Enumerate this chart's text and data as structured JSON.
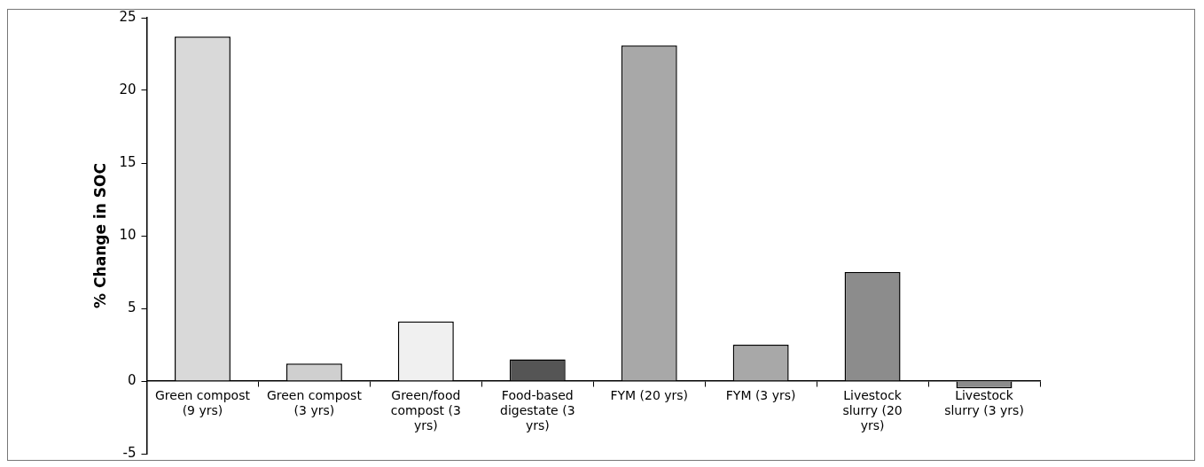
{
  "chart_data": {
    "type": "bar",
    "ylabel": "% Change in SOC",
    "categories": [
      "Green compost (9 yrs)",
      "Green compost (3 yrs)",
      "Green/food compost (3 yrs)",
      "Food-based digestate (3 yrs)",
      "FYM (20 yrs)",
      "FYM (3 yrs)",
      "Livestock slurry (20 yrs)",
      "Livestock slurry (3 yrs)"
    ],
    "values": [
      23.7,
      1.2,
      4.1,
      1.5,
      23.1,
      2.5,
      7.5,
      -0.5
    ],
    "colors": [
      "#d9d9d9",
      "#cfcfcf",
      "#f0f0f0",
      "#555555",
      "#a8a8a8",
      "#a8a8a8",
      "#8c8c8c",
      "#8c8c8c"
    ],
    "ylim": [
      -5,
      25
    ],
    "yticks": [
      -5,
      0,
      5,
      10,
      15,
      20,
      25
    ],
    "grid": false,
    "legend": false
  }
}
